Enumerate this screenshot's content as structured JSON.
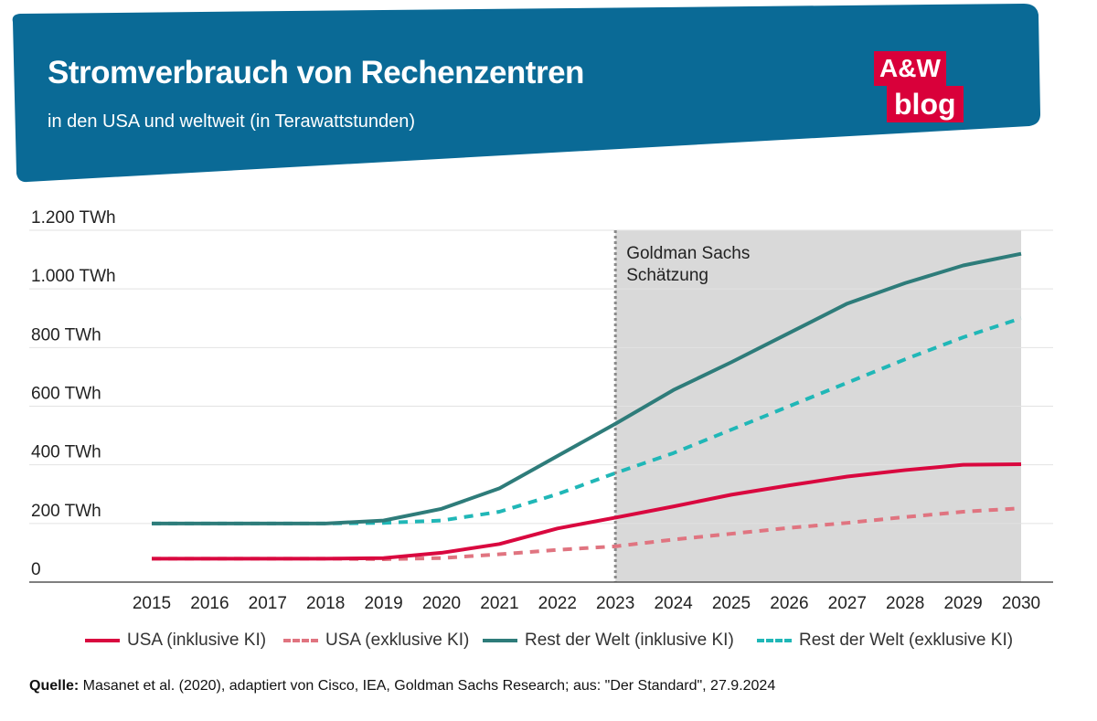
{
  "header": {
    "title": "Stromverbrauch von Rechenzentren",
    "subtitle": "in den USA und weltweit (in Terawattstunden)",
    "logo_top": "A&W",
    "logo_bottom": "blog"
  },
  "colors": {
    "header_bg": "#0a6a96",
    "usa": "#d9083f",
    "usa_excl": "#e07480",
    "row": "#2e7c7a",
    "row_excl": "#20b7b7",
    "shade": "#d9d9d9"
  },
  "chart_data": {
    "type": "line",
    "x": [
      "2015",
      "2016",
      "2017",
      "2018",
      "2019",
      "2020",
      "2021",
      "2022",
      "2023",
      "2024",
      "2025",
      "2026",
      "2027",
      "2028",
      "2029",
      "2030"
    ],
    "y_ticks": [
      "0",
      "200 TWh",
      "400 TWh",
      "600 TWh",
      "800 TWh",
      "1.000 TWh",
      "1.200 TWh"
    ],
    "ylim": [
      0,
      1200
    ],
    "annotation": {
      "line1": "Goldman Sachs",
      "line2": "Schätzung",
      "from": "2023",
      "to": "2030"
    },
    "series": [
      {
        "name": "USA (inklusive KI)",
        "style": "solid",
        "color": "#d9083f",
        "values": [
          80,
          80,
          80,
          80,
          82,
          100,
          130,
          183,
          220,
          258,
          298,
          330,
          360,
          382,
          400,
          402
        ]
      },
      {
        "name": "USA (exklusive KI)",
        "style": "dashed",
        "color": "#e07480",
        "values": [
          80,
          80,
          80,
          80,
          78,
          82,
          95,
          110,
          122,
          145,
          165,
          185,
          202,
          222,
          240,
          252
        ]
      },
      {
        "name": "Rest der Welt (inklusive KI)",
        "style": "solid",
        "color": "#2e7c7a",
        "values": [
          200,
          200,
          200,
          200,
          210,
          250,
          320,
          430,
          540,
          655,
          750,
          850,
          950,
          1020,
          1080,
          1120
        ]
      },
      {
        "name": "Rest der Welt (exklusive KI)",
        "style": "dashed",
        "color": "#20b7b7",
        "values": [
          200,
          200,
          200,
          200,
          202,
          210,
          240,
          300,
          372,
          440,
          520,
          600,
          680,
          760,
          835,
          900
        ]
      }
    ]
  },
  "source": {
    "label": "Quelle:",
    "text": " Masanet et al. (2020), adaptiert von Cisco, IEA, Goldman Sachs Research; aus: \"Der Standard\", 27.9.2024"
  }
}
